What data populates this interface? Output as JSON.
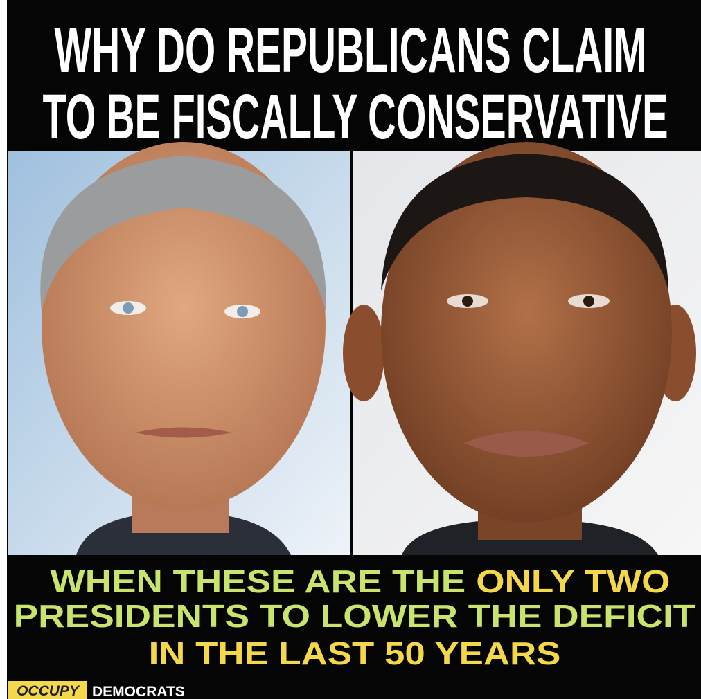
{
  "header": {
    "lines": [
      "WHY DO REPUBLICANS CLAIM",
      "TO BE FISCALLY CONSERVATIVE"
    ]
  },
  "caption": {
    "lines": [
      [
        {
          "text": "WHEN THESE ARE THE",
          "color": "#c8e46c"
        },
        {
          "text": "ONLY TWO",
          "color": "#f3d84c"
        }
      ],
      [
        {
          "text": "PRESIDENTS TO LOWER THE DEFICIT",
          "color": "#c8e46c"
        }
      ],
      [
        {
          "text": "IN THE LAST 50 YEARS",
          "color": "#f3d84c"
        }
      ]
    ]
  },
  "logo": {
    "first": "OCCUPY",
    "second": "DEMOCRATS"
  }
}
